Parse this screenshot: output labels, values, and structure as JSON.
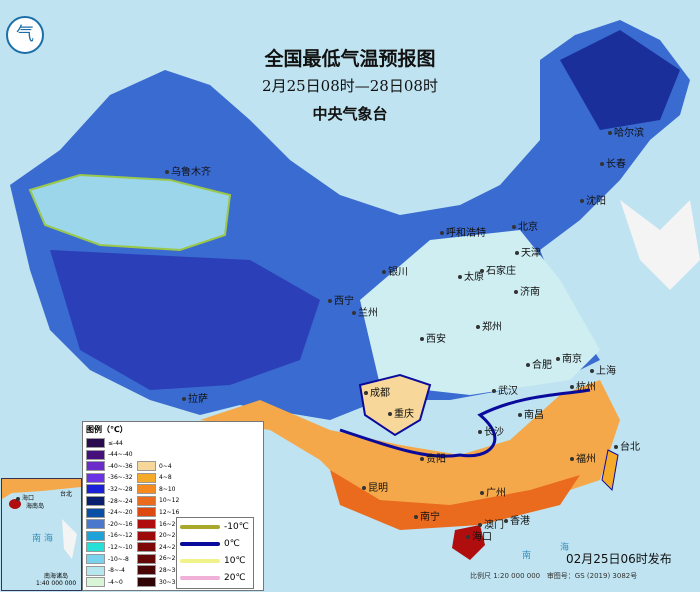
{
  "header": {
    "title": "全国最低气温预报图",
    "period": "2月25日08时—28日08时",
    "issuer": "中央气象台"
  },
  "logo": {
    "icon": "cma-logo",
    "text": "气"
  },
  "cities": [
    "乌鲁木齐",
    "哈尔滨",
    "长春",
    "沈阳",
    "北京",
    "天津",
    "呼和浩特",
    "太原",
    "石家庄",
    "银川",
    "济南",
    "西宁",
    "兰州",
    "郑州",
    "西安",
    "合肥",
    "南京",
    "上海",
    "武汉",
    "杭州",
    "成都",
    "重庆",
    "长沙",
    "南昌",
    "拉萨",
    "福州",
    "台北",
    "贵阳",
    "昆明",
    "南宁",
    "广州",
    "澳门",
    "香港",
    "海口"
  ],
  "seas": [
    "南",
    "海"
  ],
  "legend": {
    "title": "图例（℃）",
    "left": [
      {
        "label": "≤-44",
        "color": "#2a0a4e"
      },
      {
        "label": "-44~-40",
        "color": "#45107a"
      },
      {
        "label": "-40~-36",
        "color": "#6a2bc8"
      },
      {
        "label": "-36~-32",
        "color": "#6a33e6"
      },
      {
        "label": "-32~-28",
        "color": "#1a1fd8"
      },
      {
        "label": "-28~-24",
        "color": "#0a1f6e"
      },
      {
        "label": "-24~-20",
        "color": "#0a4fa6"
      },
      {
        "label": "-20~-16",
        "color": "#4a78cc"
      },
      {
        "label": "-16~-12",
        "color": "#1fa2d8"
      },
      {
        "label": "-12~-10",
        "color": "#26e0d8"
      },
      {
        "label": "-10~-8",
        "color": "#7ad2ee"
      },
      {
        "label": "-8~-4",
        "color": "#b7e6ee"
      },
      {
        "label": "-4~0",
        "color": "#d8f5d8"
      }
    ],
    "right": [
      {
        "label": "0~4",
        "color": "#f8d89a"
      },
      {
        "label": "4~8",
        "color": "#f5aa2a"
      },
      {
        "label": "8~10",
        "color": "#f58a1e"
      },
      {
        "label": "10~12",
        "color": "#ea6a1e"
      },
      {
        "label": "12~16",
        "color": "#dc4a12"
      },
      {
        "label": "16~20",
        "color": "#b00e0e"
      },
      {
        "label": "20~24",
        "color": "#9c0a0a"
      },
      {
        "label": "24~26",
        "color": "#7c0808"
      },
      {
        "label": "26~28",
        "color": "#640808"
      },
      {
        "label": "28~30",
        "color": "#4a0606"
      },
      {
        "label": "30~32",
        "color": "#300404"
      }
    ],
    "lines": [
      {
        "label": "-10℃",
        "color": "#a8a82a"
      },
      {
        "label": "0℃",
        "color": "#0a0a9c"
      },
      {
        "label": "10℃",
        "color": "#f2f28a"
      },
      {
        "label": "20℃",
        "color": "#f0b0d8"
      }
    ]
  },
  "inset": {
    "labels": [
      "海口",
      "海南岛",
      "台北",
      "南海诸岛",
      "南",
      "海"
    ],
    "scale": "1:40 000 000"
  },
  "footer": {
    "issued": "02月25日06时发布",
    "scale": "比例尺 1:20 000 000",
    "approval": "审图号：GS (2019) 3082号"
  }
}
